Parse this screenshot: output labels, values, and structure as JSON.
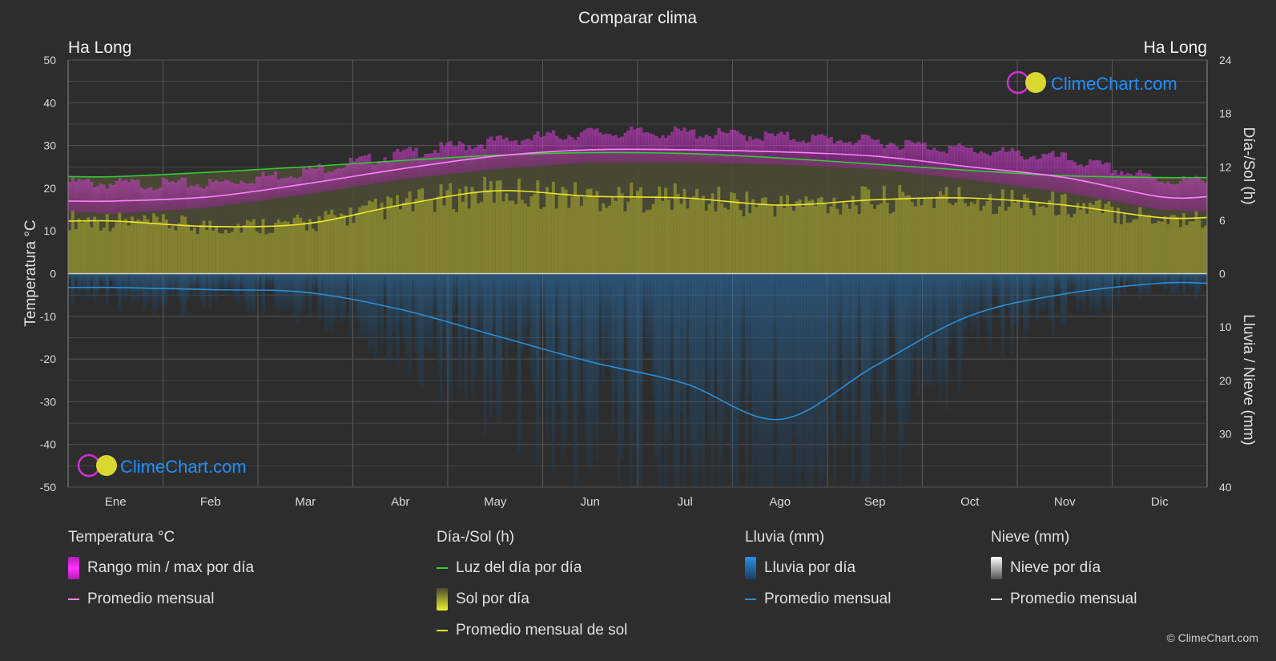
{
  "chart_data": {
    "type": "line",
    "title": "Comparar clima",
    "location_left": "Ha Long",
    "location_right": "Ha Long",
    "months": [
      "Ene",
      "Feb",
      "Mar",
      "Abr",
      "May",
      "Jun",
      "Jul",
      "Ago",
      "Sep",
      "Oct",
      "Nov",
      "Dic"
    ],
    "y_left": {
      "label": "Temperatura °C",
      "range": [
        -50,
        50
      ],
      "ticks": [
        50,
        40,
        30,
        20,
        10,
        0,
        -10,
        -20,
        -30,
        -40,
        -50
      ]
    },
    "y_right_top": {
      "label": "Día-/Sol (h)",
      "range": [
        0,
        24
      ],
      "ticks": [
        24,
        18,
        12,
        6,
        0
      ]
    },
    "y_right_bottom": {
      "label": "Lluvia / Nieve (mm)",
      "range": [
        0,
        40
      ],
      "ticks": [
        10,
        20,
        30,
        40
      ]
    },
    "series": [
      {
        "name": "Luz del día por día",
        "unit": "h",
        "color": "#33cc33",
        "values": [
          10.9,
          11.4,
          12.0,
          12.7,
          13.3,
          13.6,
          13.5,
          13.0,
          12.3,
          11.6,
          11.0,
          10.8
        ]
      },
      {
        "name": "Promedio mensual de sol",
        "unit": "h",
        "color": "#e8e82a",
        "values": [
          5.9,
          5.3,
          5.6,
          7.7,
          9.3,
          8.7,
          8.5,
          7.7,
          8.3,
          8.5,
          7.7,
          6.3
        ]
      },
      {
        "name": "Promedio mensual (temperatura)",
        "unit": "°C",
        "color": "#ff80ff",
        "values": [
          17,
          18,
          21,
          24.5,
          27.5,
          29,
          29,
          28.5,
          27.5,
          25,
          22.5,
          18
        ]
      },
      {
        "name": "Rango min / max por día",
        "unit": "°C",
        "color": "#d21ed2",
        "min": [
          14,
          15.5,
          18.5,
          22,
          24.5,
          26,
          26,
          25.5,
          24.5,
          22,
          19,
          15
        ],
        "max": [
          21,
          21,
          24,
          28,
          31,
          33,
          33,
          32,
          31,
          29,
          27,
          22
        ]
      },
      {
        "name": "Promedio mensual (lluvia)",
        "unit": "mm",
        "color": "#2a8fd8",
        "values": [
          2.6,
          3.0,
          3.5,
          6.7,
          11.6,
          16.5,
          20.6,
          27.3,
          17.3,
          7.9,
          3.8,
          1.8
        ]
      }
    ]
  },
  "legend": {
    "temp": {
      "header": "Temperatura °C",
      "items": [
        "Rango min / max por día",
        "Promedio mensual"
      ]
    },
    "sun": {
      "header": "Día-/Sol (h)",
      "items": [
        "Luz del día por día",
        "Sol por día",
        "Promedio mensual de sol"
      ]
    },
    "rain": {
      "header": "Lluvia (mm)",
      "items": [
        "Lluvia por día",
        "Promedio mensual"
      ]
    },
    "snow": {
      "header": "Nieve (mm)",
      "items": [
        "Nieve por día",
        "Promedio mensual"
      ]
    }
  },
  "branding": {
    "logo_text": "ClimeChart.com",
    "copyright": "© ClimeChart.com"
  },
  "colors": {
    "background": "#2d2d2d",
    "grid": "#555555",
    "logo": "#1e90ff"
  }
}
